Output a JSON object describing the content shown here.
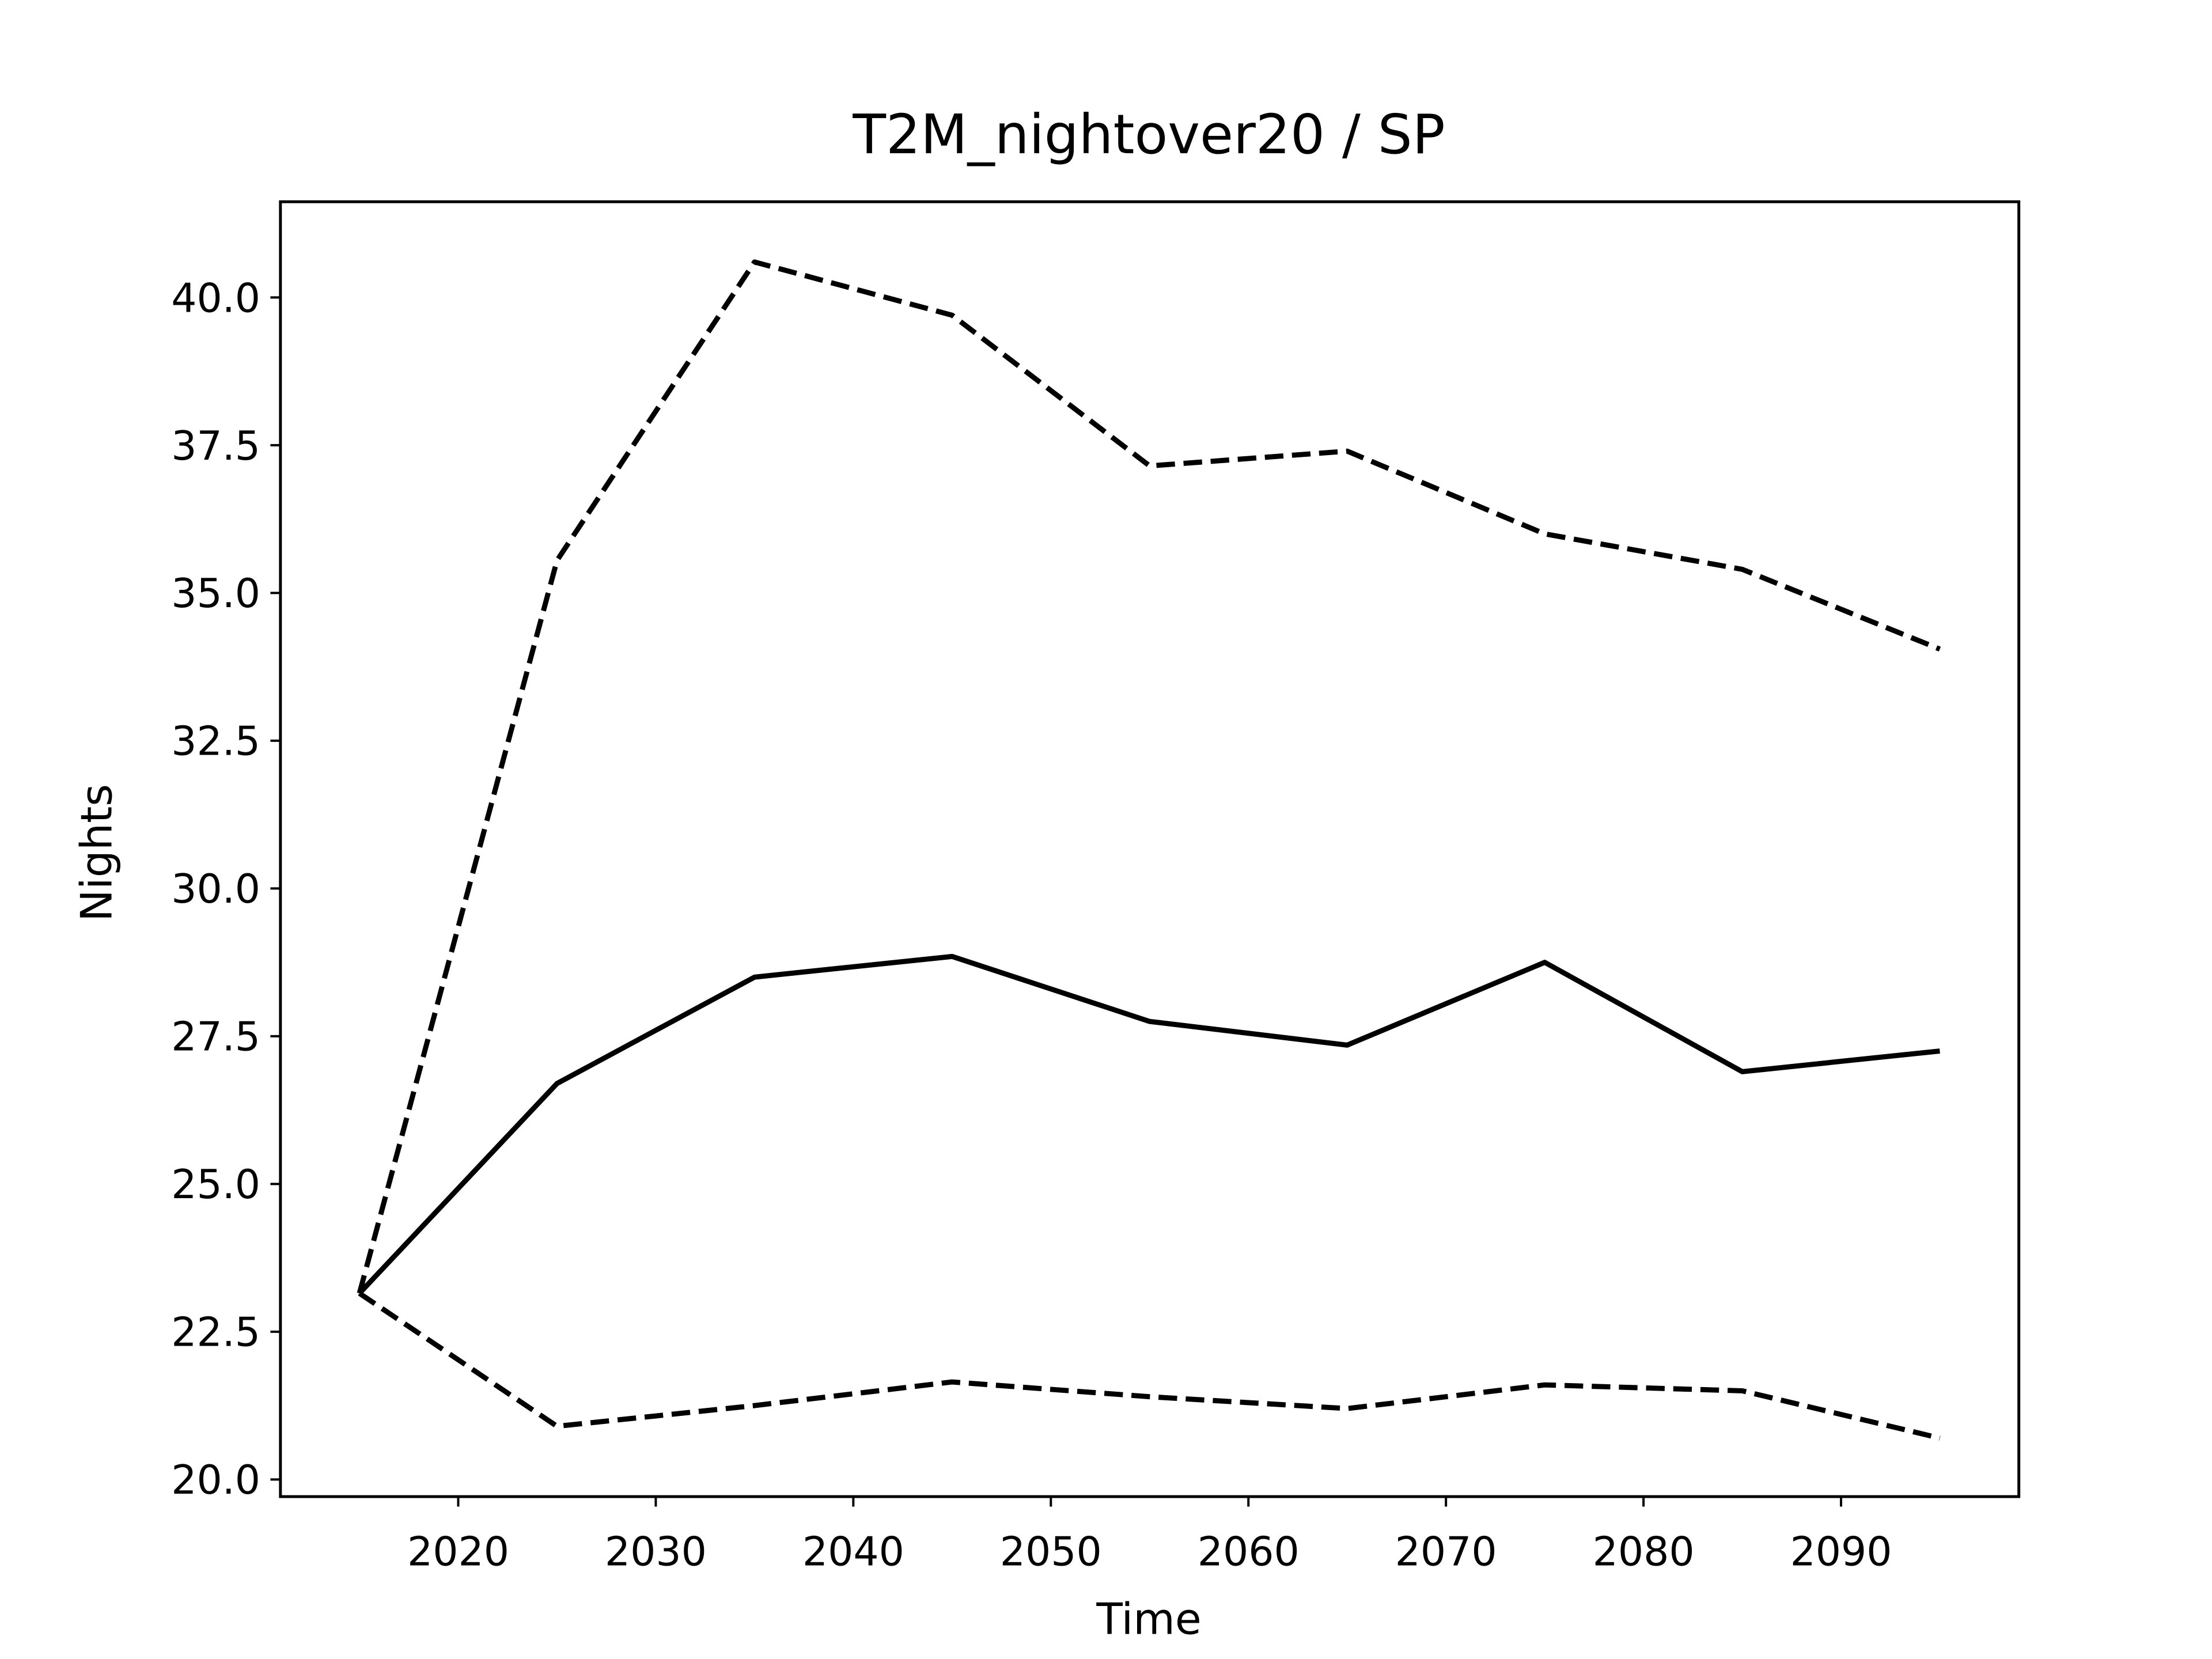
{
  "chart_data": {
    "type": "line",
    "title": "T2M_nightover20 / SP",
    "xlabel": "Time",
    "ylabel": "Nights",
    "x": [
      2015,
      2025,
      2035,
      2045,
      2055,
      2065,
      2075,
      2085,
      2095
    ],
    "series": [
      {
        "color": "#000000",
        "linestyle": "solid",
        "values": [
          23.15,
          26.7,
          28.5,
          28.85,
          27.75,
          27.35,
          28.75,
          26.9,
          27.25
        ]
      },
      {
        "color": "#000000",
        "linestyle": "dashed",
        "values": [
          23.15,
          35.55,
          40.6,
          39.7,
          37.15,
          37.4,
          36.0,
          35.4,
          34.05
        ]
      },
      {
        "color": "#000000",
        "linestyle": "dashed",
        "values": [
          23.15,
          20.9,
          21.25,
          21.65,
          21.4,
          21.2,
          21.6,
          21.5,
          20.7
        ]
      }
    ],
    "xlim": [
      2011,
      2099
    ],
    "ylim": [
      19.71,
      41.62
    ],
    "xticks": [
      2020,
      2030,
      2040,
      2050,
      2060,
      2070,
      2080,
      2090
    ],
    "yticks": [
      {
        "value": 20,
        "label": "20.0"
      },
      22.5,
      {
        "value": 25,
        "label": "25.0"
      },
      27.5,
      {
        "value": 30,
        "label": "30.0"
      },
      32.5,
      {
        "value": 35,
        "label": "35.0"
      },
      37.5,
      {
        "value": 40,
        "label": "40.0"
      }
    ],
    "grid": false
  }
}
